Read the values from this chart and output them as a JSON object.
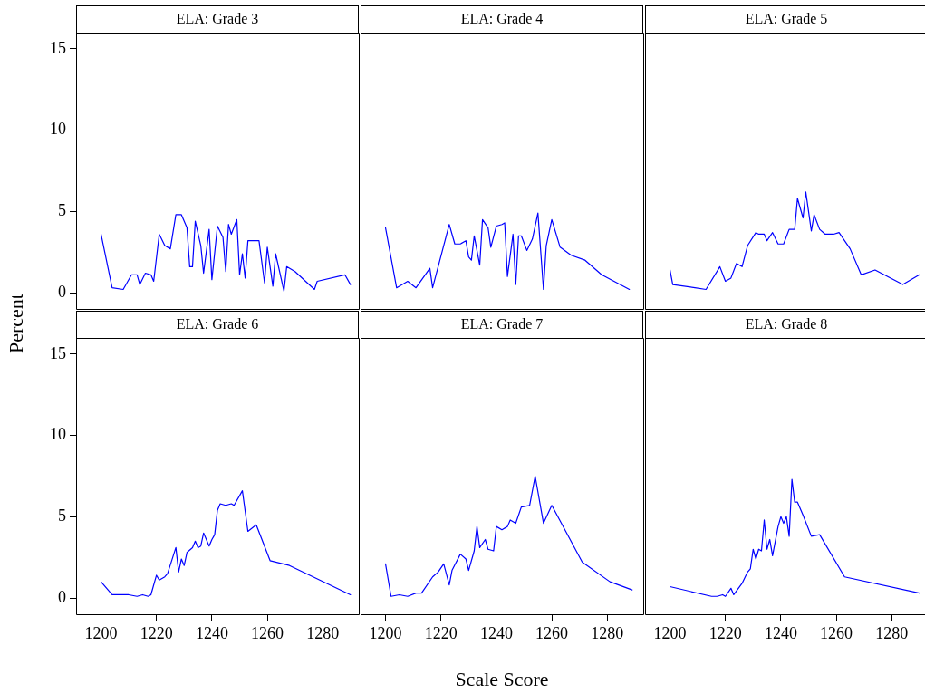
{
  "chart_data": [
    {
      "type": "line",
      "title": "ELA: Grade 3",
      "ylabel": "Percent",
      "xlim": [
        1191,
        1293
      ],
      "ylim": [
        -1,
        16
      ],
      "xticks": [
        1200,
        1220,
        1240,
        1260,
        1280
      ],
      "yticks": [
        0,
        5,
        10,
        15
      ],
      "tick_labels": "y",
      "grid": false,
      "legend": false,
      "marker": "none",
      "line_style": "solid",
      "series": [
        {
          "color": "#0000ff",
          "x": [
            1200,
            1204,
            1208,
            1211,
            1213,
            1214,
            1216,
            1218,
            1219,
            1221,
            1223,
            1225,
            1227,
            1229,
            1231,
            1232,
            1233,
            1234,
            1236,
            1237,
            1239,
            1240,
            1242,
            1244,
            1245,
            1246,
            1247,
            1249,
            1250,
            1251,
            1252,
            1253,
            1257,
            1259,
            1260,
            1262,
            1263,
            1266,
            1267,
            1270,
            1277,
            1278,
            1288,
            1290
          ],
          "values": [
            3.6,
            0.3,
            0.2,
            1.1,
            1.1,
            0.5,
            1.2,
            1.1,
            0.7,
            3.6,
            2.9,
            2.7,
            4.8,
            4.8,
            4.0,
            1.6,
            1.6,
            4.4,
            2.9,
            1.2,
            3.9,
            0.8,
            4.1,
            3.4,
            1.3,
            4.2,
            3.6,
            4.5,
            1.1,
            2.4,
            0.9,
            3.2,
            3.2,
            0.6,
            2.8,
            0.4,
            2.4,
            0.1,
            1.6,
            1.3,
            0.2,
            0.7,
            1.1,
            0.5
          ]
        }
      ]
    },
    {
      "type": "line",
      "title": "ELA: Grade 4",
      "xlim": [
        1191,
        1293
      ],
      "ylim": [
        -1,
        16
      ],
      "xticks": [
        1200,
        1220,
        1240,
        1260,
        1280
      ],
      "yticks": [
        0,
        5,
        10,
        15
      ],
      "tick_labels": false,
      "grid": false,
      "legend": false,
      "marker": "none",
      "line_style": "solid",
      "series": [
        {
          "color": "#0000ff",
          "x": [
            1200,
            1204,
            1208,
            1211,
            1216,
            1217,
            1223,
            1225,
            1227,
            1229,
            1230,
            1231,
            1232,
            1234,
            1235,
            1237,
            1238,
            1240,
            1242,
            1243,
            1244,
            1246,
            1247,
            1248,
            1249,
            1251,
            1253,
            1255,
            1257,
            1258,
            1260,
            1263,
            1267,
            1272,
            1278,
            1288
          ],
          "values": [
            4.0,
            0.3,
            0.7,
            0.3,
            1.5,
            0.3,
            4.2,
            3.0,
            3.0,
            3.2,
            2.2,
            2.0,
            3.5,
            1.7,
            4.5,
            4.0,
            2.8,
            4.1,
            4.2,
            4.3,
            1.0,
            3.6,
            0.5,
            3.5,
            3.5,
            2.6,
            3.3,
            4.9,
            0.2,
            2.9,
            4.5,
            2.8,
            2.3,
            2.0,
            1.1,
            0.2
          ]
        }
      ]
    },
    {
      "type": "line",
      "title": "ELA: Grade 5",
      "xlim": [
        1191,
        1293
      ],
      "ylim": [
        -1,
        16
      ],
      "xticks": [
        1200,
        1220,
        1240,
        1260,
        1280
      ],
      "yticks": [
        0,
        5,
        10,
        15
      ],
      "tick_labels": false,
      "grid": false,
      "legend": false,
      "marker": "none",
      "line_style": "solid",
      "series": [
        {
          "color": "#0000ff",
          "x": [
            1200,
            1201,
            1209,
            1213,
            1218,
            1220,
            1222,
            1224,
            1226,
            1228,
            1231,
            1232,
            1234,
            1235,
            1237,
            1239,
            1241,
            1243,
            1245,
            1246,
            1248,
            1249,
            1251,
            1252,
            1254,
            1256,
            1259,
            1261,
            1265,
            1269,
            1274,
            1284,
            1290
          ],
          "values": [
            1.4,
            0.5,
            0.3,
            0.2,
            1.6,
            0.7,
            0.9,
            1.8,
            1.6,
            2.9,
            3.7,
            3.6,
            3.6,
            3.2,
            3.7,
            3.0,
            3.0,
            3.9,
            3.9,
            5.8,
            4.6,
            6.2,
            3.8,
            4.8,
            3.9,
            3.6,
            3.6,
            3.7,
            2.7,
            1.1,
            1.4,
            0.5,
            1.1
          ]
        }
      ]
    },
    {
      "type": "line",
      "title": "ELA: Grade 6",
      "xlim": [
        1191,
        1293
      ],
      "ylim": [
        -1,
        16
      ],
      "xticks": [
        1200,
        1220,
        1240,
        1260,
        1280
      ],
      "yticks": [
        0,
        5,
        10,
        15
      ],
      "grid": false,
      "legend": false,
      "marker": "none",
      "line_style": "solid",
      "series": [
        {
          "color": "#0000ff",
          "x": [
            1200,
            1204,
            1210,
            1213,
            1215,
            1217,
            1218,
            1220,
            1221,
            1223,
            1224,
            1227,
            1228,
            1229,
            1230,
            1231,
            1233,
            1234,
            1235,
            1236,
            1237,
            1239,
            1240,
            1241,
            1242,
            1243,
            1245,
            1247,
            1248,
            1251,
            1253,
            1256,
            1261,
            1268,
            1290
          ],
          "values": [
            1.0,
            0.2,
            0.2,
            0.1,
            0.2,
            0.1,
            0.2,
            1.4,
            1.1,
            1.3,
            1.5,
            3.1,
            1.6,
            2.4,
            2.0,
            2.8,
            3.1,
            3.5,
            3.1,
            3.2,
            4.0,
            3.2,
            3.6,
            3.9,
            5.4,
            5.8,
            5.7,
            5.8,
            5.7,
            6.6,
            4.1,
            4.5,
            2.3,
            2.0,
            0.2
          ]
        }
      ]
    },
    {
      "type": "line",
      "title": "ELA: Grade 7",
      "xlabel": "Scale Score",
      "xlim": [
        1191,
        1293
      ],
      "ylim": [
        -1,
        16
      ],
      "xticks": [
        1200,
        1220,
        1240,
        1260,
        1280
      ],
      "yticks": [
        0,
        5,
        10,
        15
      ],
      "tick_labels": "x",
      "grid": false,
      "legend": false,
      "marker": "none",
      "line_style": "solid",
      "series": [
        {
          "color": "#0000ff",
          "x": [
            1200,
            1202,
            1205,
            1208,
            1211,
            1213,
            1217,
            1219,
            1221,
            1223,
            1224,
            1227,
            1229,
            1230,
            1232,
            1233,
            1234,
            1236,
            1237,
            1239,
            1240,
            1242,
            1244,
            1245,
            1247,
            1249,
            1252,
            1254,
            1257,
            1260,
            1271,
            1281,
            1289
          ],
          "values": [
            2.1,
            0.1,
            0.2,
            0.1,
            0.3,
            0.3,
            1.3,
            1.6,
            2.1,
            0.8,
            1.7,
            2.7,
            2.4,
            1.7,
            2.9,
            4.4,
            3.1,
            3.6,
            3.0,
            2.9,
            4.4,
            4.2,
            4.4,
            4.8,
            4.6,
            5.6,
            5.7,
            7.5,
            4.6,
            5.7,
            2.2,
            1.0,
            0.5
          ]
        }
      ]
    },
    {
      "type": "line",
      "title": "ELA: Grade 8",
      "xlim": [
        1191,
        1293
      ],
      "ylim": [
        -1,
        16
      ],
      "xticks": [
        1200,
        1220,
        1240,
        1260,
        1280
      ],
      "yticks": [
        0,
        5,
        10,
        15
      ],
      "tick_labels": "x",
      "grid": false,
      "legend": false,
      "marker": "none",
      "line_style": "solid",
      "series": [
        {
          "color": "#0000ff",
          "x": [
            1200,
            1215,
            1217,
            1219,
            1220,
            1222,
            1223,
            1226,
            1228,
            1229,
            1230,
            1231,
            1232,
            1233,
            1234,
            1235,
            1236,
            1237,
            1239,
            1240,
            1241,
            1242,
            1243,
            1244,
            1245,
            1246,
            1248,
            1251,
            1254,
            1263,
            1290
          ],
          "values": [
            0.7,
            0.1,
            0.1,
            0.2,
            0.1,
            0.6,
            0.2,
            0.9,
            1.6,
            1.8,
            3.0,
            2.4,
            3.0,
            2.9,
            4.8,
            3.0,
            3.6,
            2.6,
            4.4,
            5.0,
            4.6,
            5.0,
            3.8,
            7.3,
            5.9,
            5.9,
            5.1,
            3.8,
            3.9,
            1.3,
            0.3
          ]
        }
      ]
    }
  ]
}
